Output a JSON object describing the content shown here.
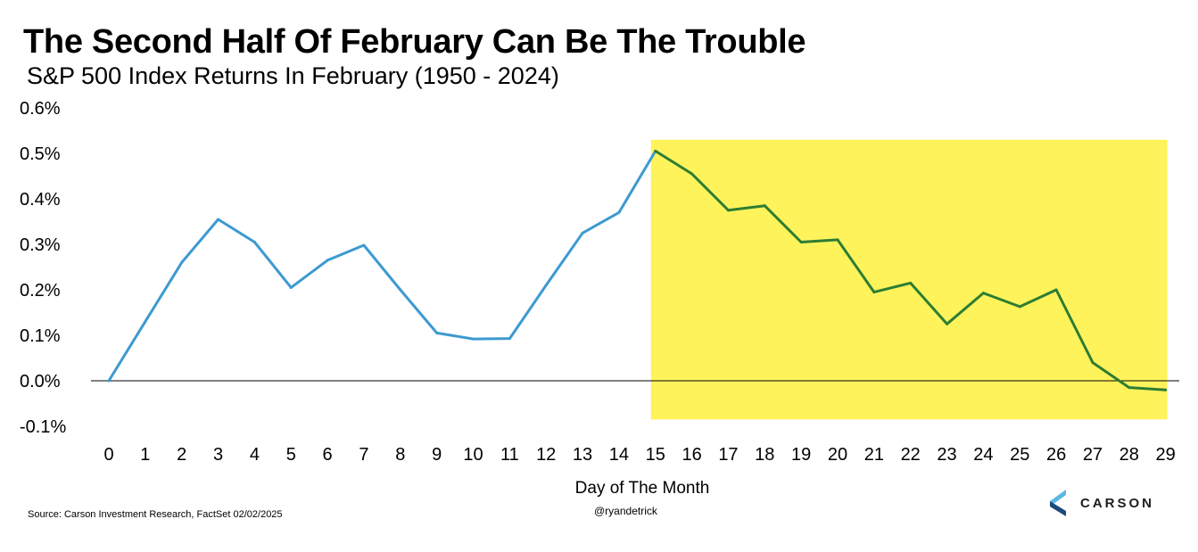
{
  "title": "The Second Half Of February Can Be The Trouble",
  "subtitle": "S&P 500 Index Returns In February (1950 - 2024)",
  "source": "Source: Carson Investment Research, FactSet 02/02/2025",
  "handle": "@ryandetrick",
  "logo_text": "CARSON",
  "colors": {
    "line_first_half": "#3d9ad1",
    "line_second_half": "#2e7d32",
    "highlight": "#fff35c",
    "zero_line": "#000000",
    "logo_light": "#5bb8e6",
    "logo_dark": "#1b4a7a"
  },
  "chart_data": {
    "type": "line",
    "title": "The Second Half Of February Can Be The Trouble",
    "subtitle": "S&P 500 Index Returns In February (1950 - 2024)",
    "xlabel": "Day of The Month",
    "ylabel": "",
    "ylim": [
      -0.1,
      0.6
    ],
    "y_ticks": [
      "-0.1%",
      "0.0%",
      "0.1%",
      "0.2%",
      "0.3%",
      "0.4%",
      "0.5%",
      "0.6%"
    ],
    "y_tick_values": [
      -0.1,
      0.0,
      0.1,
      0.2,
      0.3,
      0.4,
      0.5,
      0.6
    ],
    "x": [
      0,
      1,
      2,
      3,
      4,
      5,
      6,
      7,
      8,
      9,
      10,
      11,
      12,
      13,
      14,
      15,
      16,
      17,
      18,
      19,
      20,
      21,
      22,
      23,
      24,
      25,
      26,
      27,
      28,
      29
    ],
    "y": [
      0.0,
      0.13,
      0.26,
      0.355,
      0.305,
      0.205,
      0.265,
      0.298,
      0.2,
      0.105,
      0.092,
      0.093,
      0.21,
      0.325,
      0.37,
      0.505,
      0.455,
      0.375,
      0.385,
      0.305,
      0.31,
      0.195,
      0.215,
      0.125,
      0.193,
      0.163,
      0.2,
      0.04,
      -0.015,
      -0.02
    ],
    "highlight_x_range": [
      15,
      29
    ],
    "highlight_y_range": [
      -0.085,
      0.53
    ],
    "grid": false,
    "legend": "none"
  }
}
